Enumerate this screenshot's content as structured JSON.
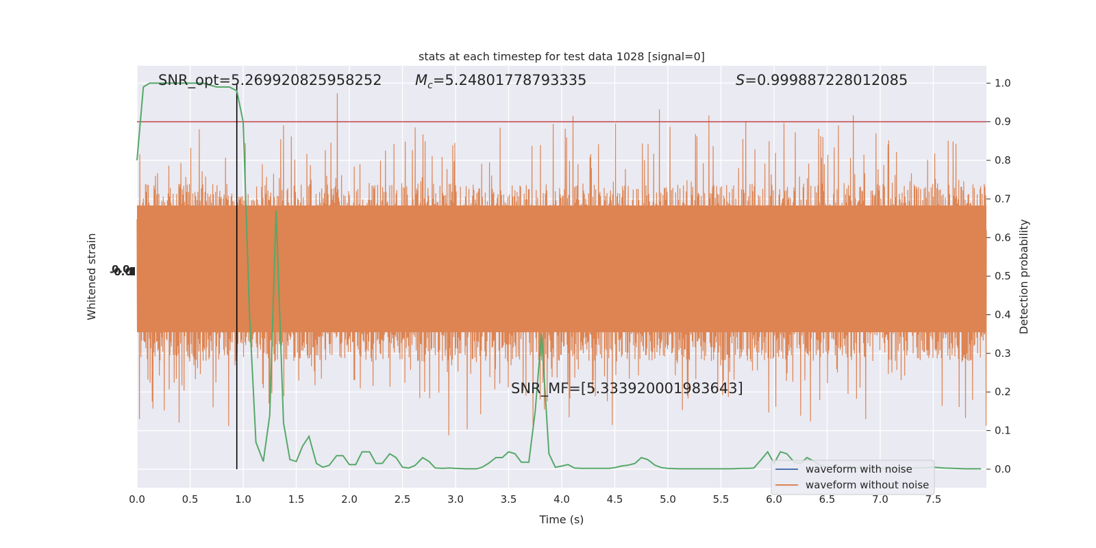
{
  "chart_data": {
    "type": "line",
    "title": "stats at each timestep for test data 1028 [signal=0]",
    "xlabel": "Time (s)",
    "ylabel_left": "Whitened strain",
    "ylabel_right": "Detection probability",
    "xlim": [
      0.0,
      8.0
    ],
    "ylim_right": [
      -0.048,
      1.045
    ],
    "x_ticks": [
      "0.0",
      "0.5",
      "1.0",
      "1.5",
      "2.0",
      "2.5",
      "3.0",
      "3.5",
      "4.0",
      "4.5",
      "5.0",
      "5.5",
      "6.0",
      "6.5",
      "7.0",
      "7.5"
    ],
    "y_ticks_right": [
      "0.0",
      "0.1",
      "0.2",
      "0.3",
      "0.4",
      "0.5",
      "0.6",
      "0.7",
      "0.8",
      "0.9",
      "1.0"
    ],
    "grid": true,
    "legend_position": "bottom-right",
    "annotations": {
      "snr_opt": "SNR_opt=5.269920825958252",
      "mc_value": "=5.24801778793335",
      "s_value": "=0.999887228012085",
      "snr_mf": "SNR_MF=[5.333920001983643]"
    },
    "threshold": {
      "value": 0.9,
      "color": "#c44e52"
    },
    "marker_time": 0.94,
    "series": [
      {
        "name": "waveform with noise",
        "color": "#4c72b0",
        "kind": "strain"
      },
      {
        "name": "waveform without noise",
        "color": "#dd8452",
        "kind": "strain"
      },
      {
        "kind": "probability",
        "color": "#55a868",
        "x": [
          0.0,
          0.06,
          0.12,
          0.18,
          0.25,
          0.31,
          0.38,
          0.5,
          0.62,
          0.75,
          0.81,
          0.87,
          0.94,
          1.0,
          1.06,
          1.12,
          1.19,
          1.25,
          1.31,
          1.38,
          1.44,
          1.5,
          1.56,
          1.62,
          1.69,
          1.75,
          1.81,
          1.88,
          1.94,
          2.0,
          2.06,
          2.12,
          2.19,
          2.25,
          2.31,
          2.38,
          2.44,
          2.5,
          2.56,
          2.62,
          2.69,
          2.75,
          2.81,
          2.88,
          2.94,
          3.0,
          3.1,
          3.2,
          3.25,
          3.31,
          3.38,
          3.44,
          3.5,
          3.56,
          3.62,
          3.69,
          3.75,
          3.81,
          3.88,
          3.94,
          4.0,
          4.06,
          4.12,
          4.19,
          4.25,
          4.31,
          4.38,
          4.44,
          4.5,
          4.56,
          4.62,
          4.69,
          4.75,
          4.81,
          4.88,
          4.94,
          5.0,
          5.1,
          5.2,
          5.3,
          5.4,
          5.5,
          5.6,
          5.7,
          5.75,
          5.81,
          5.88,
          5.94,
          6.0,
          6.06,
          6.12,
          6.19,
          6.25,
          6.31,
          6.38,
          6.44,
          6.5,
          6.6,
          6.7,
          6.8,
          6.9,
          7.0,
          7.1,
          7.2,
          7.3,
          7.4,
          7.5,
          7.6,
          7.7,
          7.8,
          7.9,
          7.95
        ],
        "values": [
          0.8,
          0.99,
          1.0,
          1.0,
          1.0,
          1.0,
          1.0,
          1.0,
          1.0,
          0.99,
          0.99,
          0.99,
          0.98,
          0.9,
          0.4,
          0.07,
          0.02,
          0.14,
          0.67,
          0.12,
          0.025,
          0.02,
          0.06,
          0.085,
          0.015,
          0.005,
          0.01,
          0.035,
          0.035,
          0.012,
          0.012,
          0.045,
          0.045,
          0.015,
          0.015,
          0.04,
          0.03,
          0.005,
          0.003,
          0.01,
          0.03,
          0.02,
          0.003,
          0.002,
          0.003,
          0.002,
          0.001,
          0.001,
          0.005,
          0.015,
          0.03,
          0.03,
          0.045,
          0.04,
          0.018,
          0.018,
          0.15,
          0.35,
          0.04,
          0.005,
          0.008,
          0.012,
          0.003,
          0.002,
          0.002,
          0.002,
          0.002,
          0.002,
          0.004,
          0.008,
          0.01,
          0.015,
          0.03,
          0.025,
          0.01,
          0.004,
          0.002,
          0.001,
          0.001,
          0.001,
          0.001,
          0.001,
          0.001,
          0.002,
          0.002,
          0.003,
          0.025,
          0.045,
          0.015,
          0.045,
          0.04,
          0.018,
          0.015,
          0.03,
          0.02,
          0.01,
          0.005,
          0.005,
          0.003,
          0.003,
          0.002,
          0.002,
          0.003,
          0.003,
          0.003,
          0.003,
          0.005,
          0.003,
          0.002,
          0.001,
          0.001,
          0.001
        ]
      }
    ]
  }
}
